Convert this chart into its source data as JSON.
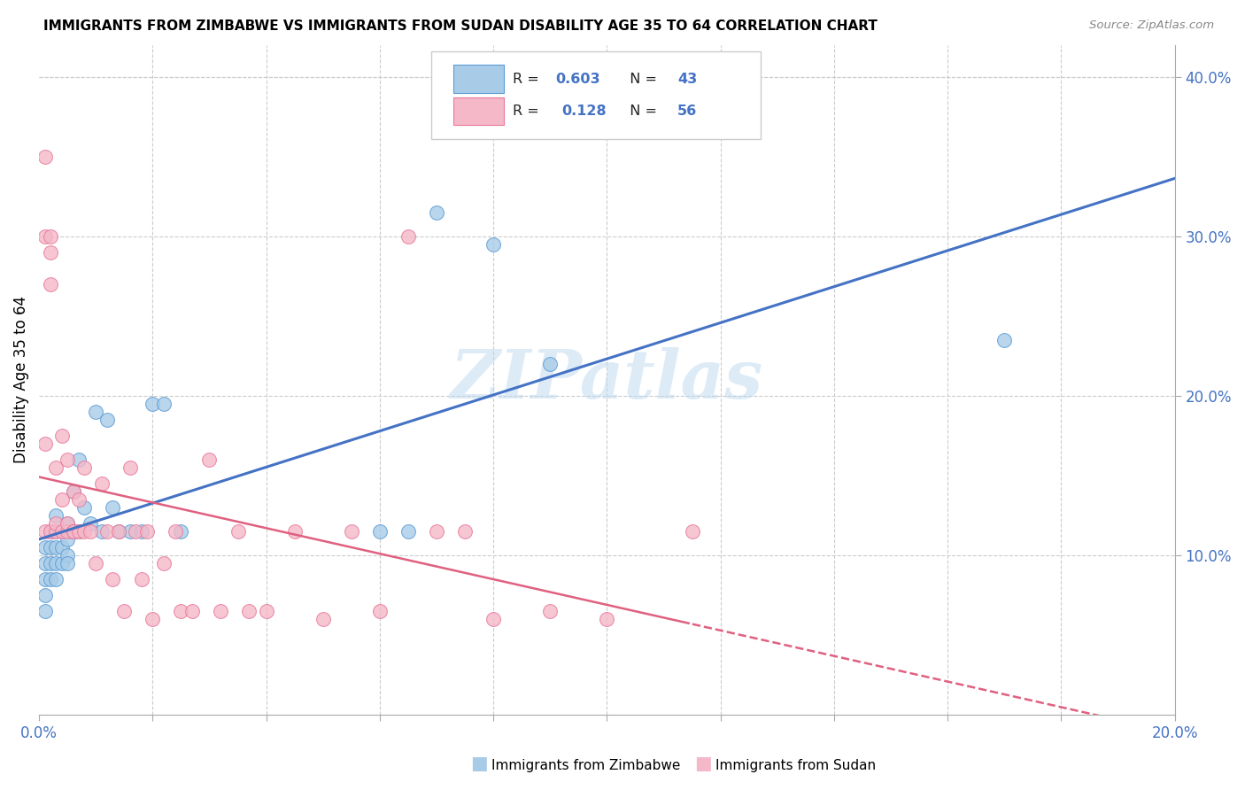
{
  "title": "IMMIGRANTS FROM ZIMBABWE VS IMMIGRANTS FROM SUDAN DISABILITY AGE 35 TO 64 CORRELATION CHART",
  "source": "Source: ZipAtlas.com",
  "ylabel": "Disability Age 35 to 64",
  "xlim": [
    0.0,
    0.2
  ],
  "ylim": [
    0.0,
    0.42
  ],
  "xtick_count": 9,
  "yticks_right": [
    0.1,
    0.2,
    0.3,
    0.4
  ],
  "legend_line1": "R = 0.603   N = 43",
  "legend_line2": "R =  0.128   N = 56",
  "color_blue_fill": "#a8cce8",
  "color_blue_edge": "#5b9bd5",
  "color_blue_line": "#4472c4",
  "color_pink_fill": "#f4b8c8",
  "color_pink_edge": "#e8789a",
  "color_pink_line": "#e06080",
  "color_axis_blue": "#4472c4",
  "color_grid": "#cccccc",
  "watermark": "ZIPatlas",
  "zimbabwe_x": [
    0.001,
    0.001,
    0.001,
    0.001,
    0.002,
    0.002,
    0.002,
    0.002,
    0.003,
    0.003,
    0.003,
    0.003,
    0.003,
    0.004,
    0.004,
    0.004,
    0.005,
    0.005,
    0.005,
    0.005,
    0.006,
    0.006,
    0.007,
    0.007,
    0.008,
    0.009,
    0.01,
    0.011,
    0.012,
    0.013,
    0.014,
    0.016,
    0.018,
    0.02,
    0.022,
    0.025,
    0.06,
    0.065,
    0.07,
    0.08,
    0.09,
    0.17,
    0.001
  ],
  "zimbabwe_y": [
    0.085,
    0.095,
    0.075,
    0.105,
    0.095,
    0.105,
    0.085,
    0.115,
    0.095,
    0.105,
    0.115,
    0.125,
    0.085,
    0.095,
    0.105,
    0.115,
    0.1,
    0.11,
    0.12,
    0.095,
    0.115,
    0.14,
    0.115,
    0.16,
    0.13,
    0.12,
    0.19,
    0.115,
    0.185,
    0.13,
    0.115,
    0.115,
    0.115,
    0.195,
    0.195,
    0.115,
    0.115,
    0.115,
    0.315,
    0.295,
    0.22,
    0.235,
    0.065
  ],
  "sudan_x": [
    0.001,
    0.001,
    0.001,
    0.002,
    0.002,
    0.002,
    0.003,
    0.003,
    0.003,
    0.004,
    0.004,
    0.004,
    0.005,
    0.005,
    0.005,
    0.006,
    0.006,
    0.006,
    0.007,
    0.007,
    0.008,
    0.008,
    0.009,
    0.01,
    0.011,
    0.012,
    0.013,
    0.014,
    0.015,
    0.016,
    0.017,
    0.018,
    0.019,
    0.02,
    0.022,
    0.024,
    0.025,
    0.027,
    0.03,
    0.032,
    0.035,
    0.037,
    0.04,
    0.045,
    0.05,
    0.055,
    0.06,
    0.065,
    0.07,
    0.075,
    0.08,
    0.09,
    0.1,
    0.115,
    0.001,
    0.002
  ],
  "sudan_y": [
    0.3,
    0.17,
    0.115,
    0.3,
    0.27,
    0.115,
    0.115,
    0.12,
    0.155,
    0.115,
    0.135,
    0.175,
    0.115,
    0.12,
    0.16,
    0.115,
    0.115,
    0.14,
    0.115,
    0.135,
    0.115,
    0.155,
    0.115,
    0.095,
    0.145,
    0.115,
    0.085,
    0.115,
    0.065,
    0.155,
    0.115,
    0.085,
    0.115,
    0.06,
    0.095,
    0.115,
    0.065,
    0.065,
    0.16,
    0.065,
    0.115,
    0.065,
    0.065,
    0.115,
    0.06,
    0.115,
    0.065,
    0.3,
    0.115,
    0.115,
    0.06,
    0.065,
    0.06,
    0.115,
    0.35,
    0.29
  ]
}
